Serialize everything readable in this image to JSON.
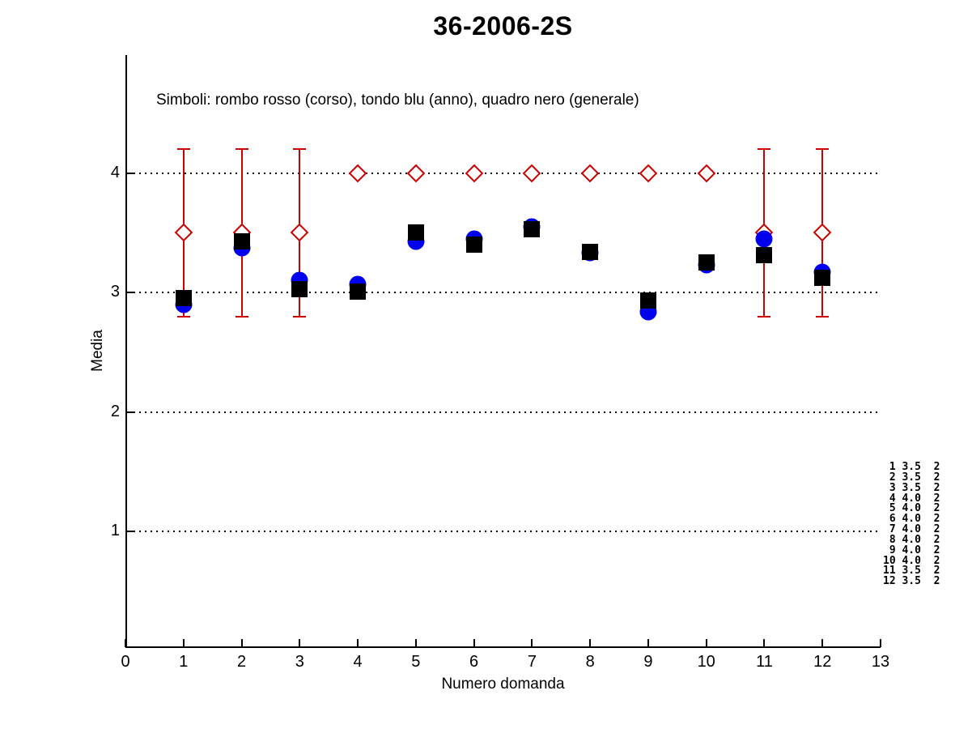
{
  "title": "36-2006-2S",
  "subtitle": "Simboli: rombo rosso (corso), tondo blu (anno), quadro nero (generale)",
  "colors": {
    "corso": "#cc0000",
    "anno": "#0000ee",
    "generale": "#000000",
    "axis": "#000000"
  },
  "chart_data": {
    "type": "scatter",
    "title": "36-2006-2S",
    "subtitle": "Simboli: rombo rosso (corso), tondo blu (anno), quadro nero (generale)",
    "xlabel": "Numero domanda",
    "ylabel": "Media",
    "xlim": [
      0,
      13
    ],
    "ylim": [
      0,
      5
    ],
    "xticks": [
      0,
      1,
      2,
      3,
      4,
      5,
      6,
      7,
      8,
      9,
      10,
      11,
      12,
      13
    ],
    "yticks": [
      1,
      2,
      3,
      4
    ],
    "grid": "horizontal dotted at yticks",
    "legend_position": "text inside plot, top-left",
    "x": [
      1,
      2,
      3,
      4,
      5,
      6,
      7,
      8,
      9,
      10,
      11,
      12
    ],
    "series": [
      {
        "name": "corso",
        "marker": "open-diamond",
        "color": "#cc0000",
        "values": [
          3.5,
          3.5,
          3.5,
          4.0,
          4.0,
          4.0,
          4.0,
          4.0,
          4.0,
          4.0,
          3.5,
          3.5
        ],
        "yerr": [
          0.7,
          0.7,
          0.7,
          0,
          0,
          0,
          0,
          0,
          0,
          0,
          0.7,
          0.7
        ]
      },
      {
        "name": "anno",
        "marker": "filled-circle",
        "color": "#0000ee",
        "values": [
          2.9,
          3.37,
          3.1,
          3.07,
          3.43,
          3.45,
          3.55,
          3.33,
          2.84,
          3.23,
          3.45,
          3.17
        ]
      },
      {
        "name": "generale",
        "marker": "filled-square",
        "color": "#000000",
        "values": [
          2.95,
          3.43,
          3.03,
          3.01,
          3.5,
          3.4,
          3.53,
          3.34,
          2.93,
          3.25,
          3.31,
          3.12
        ]
      }
    ],
    "annotation_table": {
      "rows": [
        " 1 3.5  2",
        " 2 3.5  2",
        " 3 3.5  2",
        " 4 4.0  2",
        " 5 4.0  2",
        " 6 4.0  2",
        " 7 4.0  2",
        " 8 4.0  2",
        " 9 4.0  2",
        "10 4.0  2",
        "11 3.5  2",
        "12 3.5  2"
      ]
    }
  }
}
